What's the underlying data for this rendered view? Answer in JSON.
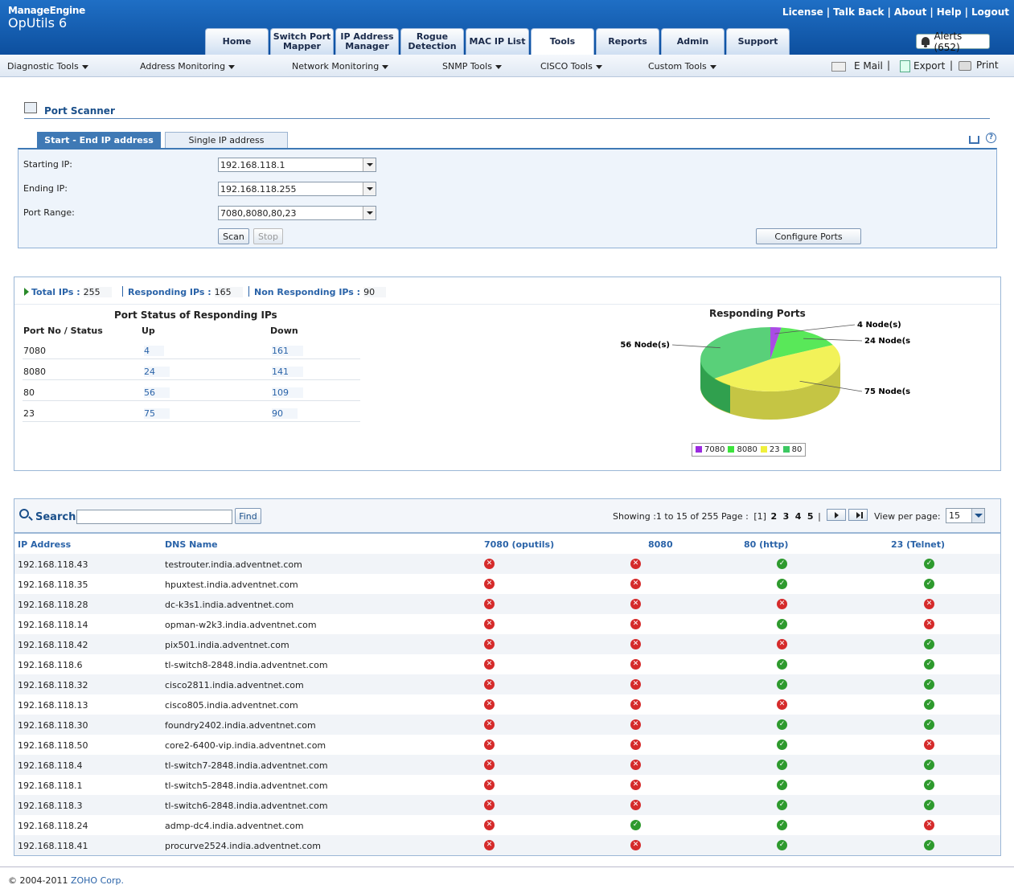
{
  "header": {
    "brand": "ManageEngine",
    "product": "OpUtils 6",
    "top_links": [
      "License",
      "Talk Back",
      "About",
      "Help",
      "Logout"
    ],
    "tabs": [
      "Home",
      "Switch Port Mapper",
      "IP Address Manager",
      "Rogue Detection",
      "MAC IP List",
      "Tools",
      "Reports",
      "Admin",
      "Support"
    ],
    "active_tab": "Tools",
    "alerts": "Alerts (652)"
  },
  "subbar": {
    "menus": [
      "Diagnostic Tools",
      "Address Monitoring",
      "Network Monitoring",
      "SNMP Tools",
      "CISCO Tools",
      "Custom Tools"
    ],
    "email": "E Mail",
    "export": "Export",
    "print": "Print"
  },
  "scanner": {
    "title": "Port Scanner",
    "tab_range": "Start - End IP address",
    "tab_single": "Single IP address",
    "starting_ip_label": "Starting IP:",
    "starting_ip": "192.168.118.1",
    "ending_ip_label": "Ending IP:",
    "ending_ip": "192.168.118.255",
    "port_range_label": "Port Range:",
    "port_range": "7080,8080,80,23",
    "scan": "Scan",
    "stop": "Stop",
    "configure": "Configure Ports"
  },
  "summary": {
    "total_label": "Total IPs :",
    "total": "255",
    "responding_label": "Responding IPs :",
    "responding": "165",
    "non_responding_label": "Non Responding IPs :",
    "non_responding": "90"
  },
  "port_status": {
    "title": "Port Status of Responding IPs",
    "headers": [
      "Port No / Status",
      "Up",
      "Down"
    ],
    "rows": [
      {
        "port": "7080",
        "up": "4",
        "down": "161"
      },
      {
        "port": "8080",
        "up": "24",
        "down": "141"
      },
      {
        "port": "80",
        "up": "56",
        "down": "109"
      },
      {
        "port": "23",
        "up": "75",
        "down": "90"
      }
    ]
  },
  "chart_data": {
    "type": "pie",
    "title": "Responding Ports",
    "categories": [
      "7080",
      "8080",
      "23",
      "80"
    ],
    "values": [
      4,
      24,
      75,
      56
    ],
    "slice_labels": [
      "4 Node(s)",
      "24 Node(s",
      "75 Node(s",
      "56 Node(s)"
    ],
    "colors": [
      "#9b2be0",
      "#3ce43c",
      "#f0f03c",
      "#3cc862"
    ],
    "legend": "bottom"
  },
  "results": {
    "search_label": "Search",
    "search_value": "",
    "find": "Find",
    "showing": "Showing :1 to 15 of 255 Page :",
    "pages": [
      "[1]",
      "2",
      "3",
      "4",
      "5"
    ],
    "view_per_page_label": "View per page:",
    "view_per_page": "15",
    "headers": [
      "IP Address",
      "DNS Name",
      "7080 (oputils)",
      "8080",
      "80 (http)",
      "23 (Telnet)"
    ],
    "rows": [
      {
        "ip": "192.168.118.43",
        "dns": "testrouter.india.adventnet.com",
        "s": [
          0,
          0,
          1,
          1
        ]
      },
      {
        "ip": "192.168.118.35",
        "dns": "hpuxtest.india.adventnet.com",
        "s": [
          0,
          0,
          1,
          1
        ]
      },
      {
        "ip": "192.168.118.28",
        "dns": "dc-k3s1.india.adventnet.com",
        "s": [
          0,
          0,
          0,
          0
        ]
      },
      {
        "ip": "192.168.118.14",
        "dns": "opman-w2k3.india.adventnet.com",
        "s": [
          0,
          0,
          1,
          0
        ]
      },
      {
        "ip": "192.168.118.42",
        "dns": "pix501.india.adventnet.com",
        "s": [
          0,
          0,
          0,
          1
        ]
      },
      {
        "ip": "192.168.118.6",
        "dns": "tl-switch8-2848.india.adventnet.com",
        "s": [
          0,
          0,
          1,
          1
        ]
      },
      {
        "ip": "192.168.118.32",
        "dns": "cisco2811.india.adventnet.com",
        "s": [
          0,
          0,
          1,
          1
        ]
      },
      {
        "ip": "192.168.118.13",
        "dns": "cisco805.india.adventnet.com",
        "s": [
          0,
          0,
          0,
          1
        ]
      },
      {
        "ip": "192.168.118.30",
        "dns": "foundry2402.india.adventnet.com",
        "s": [
          0,
          0,
          1,
          1
        ]
      },
      {
        "ip": "192.168.118.50",
        "dns": "core2-6400-vip.india.adventnet.com",
        "s": [
          0,
          0,
          1,
          0
        ]
      },
      {
        "ip": "192.168.118.4",
        "dns": "tl-switch7-2848.india.adventnet.com",
        "s": [
          0,
          0,
          1,
          1
        ]
      },
      {
        "ip": "192.168.118.1",
        "dns": "tl-switch5-2848.india.adventnet.com",
        "s": [
          0,
          0,
          1,
          1
        ]
      },
      {
        "ip": "192.168.118.3",
        "dns": "tl-switch6-2848.india.adventnet.com",
        "s": [
          0,
          0,
          1,
          1
        ]
      },
      {
        "ip": "192.168.118.24",
        "dns": "admp-dc4.india.adventnet.com",
        "s": [
          0,
          1,
          1,
          0
        ]
      },
      {
        "ip": "192.168.118.41",
        "dns": "procurve2524.india.adventnet.com",
        "s": [
          0,
          0,
          1,
          1
        ]
      }
    ]
  },
  "footer": {
    "copyright": "© 2004-2011",
    "company": "ZOHO Corp."
  }
}
